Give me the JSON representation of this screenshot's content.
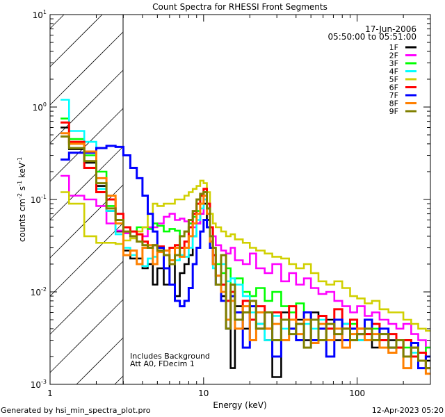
{
  "chart_data": {
    "type": "line",
    "step": true,
    "title": "Count Spectra for RHESSI Front Segments",
    "xlabel": "Energy (keV)",
    "ylabel": {
      "parts": [
        "counts cm",
        "-2",
        " s",
        "-1",
        " keV",
        "-1"
      ]
    },
    "xscale": "log",
    "yscale": "log",
    "xlim": [
      1,
      300
    ],
    "ylim": [
      0.001,
      10
    ],
    "x_ticks": [
      {
        "value": 1,
        "label": "1"
      },
      {
        "value": 10,
        "label": "10"
      },
      {
        "value": 100,
        "label": "100"
      }
    ],
    "y_ticks": [
      {
        "value": 10,
        "base": "10",
        "exp": "1"
      },
      {
        "value": 1,
        "base": "10",
        "exp": "0"
      },
      {
        "value": 0.1,
        "base": "10",
        "exp": "-1"
      },
      {
        "value": 0.01,
        "base": "10",
        "exp": "-2"
      },
      {
        "value": 0.001,
        "base": "10",
        "exp": "-3"
      }
    ],
    "hatched_region_keV": [
      1,
      3
    ],
    "date": "17-Jun-2006",
    "time_range": "05:50:00 to 05:51:00",
    "annotations": [
      "Includes Background",
      "Att A0, FDecim 1"
    ],
    "legend_position": "top-right",
    "energy_edges": [
      1.17,
      1.33,
      1.67,
      2,
      2.33,
      2.67,
      3,
      3.33,
      3.67,
      4,
      4.33,
      4.67,
      5,
      5.5,
      6,
      6.5,
      7,
      7.5,
      8,
      8.5,
      9,
      9.5,
      10,
      10.5,
      11,
      11.5,
      12,
      13,
      14,
      15,
      16,
      18,
      20,
      22,
      25,
      28,
      32,
      36,
      40,
      45,
      50,
      56,
      63,
      71,
      80,
      90,
      100,
      112,
      125,
      140,
      160,
      180,
      200,
      225,
      250,
      280,
      300
    ],
    "series": [
      {
        "name": "1F",
        "color": "#000000",
        "values": [
          0.6,
          0.35,
          0.25,
          0.14,
          0.075,
          0.045,
          0.028,
          0.023,
          0.023,
          0.018,
          0.02,
          0.012,
          0.018,
          0.012,
          0.02,
          0.009,
          0.016,
          0.02,
          0.025,
          0.04,
          0.055,
          0.07,
          0.09,
          0.06,
          0.035,
          0.02,
          0.012,
          0.009,
          0.005,
          0.0015,
          0.007,
          0.004,
          0.008,
          0.0045,
          0.003,
          0.0012,
          0.006,
          0.004,
          0.005,
          0.003,
          0.006,
          0.004,
          0.005,
          0.003,
          0.0045,
          0.004,
          0.003,
          0.004,
          0.0025,
          0.0035,
          0.003,
          0.0025,
          0.003,
          0.002,
          0.0022,
          0.0018
        ]
      },
      {
        "name": "2F",
        "color": "#ff00ff",
        "values": [
          0.18,
          0.11,
          0.1,
          0.085,
          0.055,
          0.046,
          0.043,
          0.04,
          0.042,
          0.04,
          0.05,
          0.05,
          0.055,
          0.065,
          0.07,
          0.06,
          0.062,
          0.058,
          0.055,
          0.05,
          0.055,
          0.07,
          0.1,
          0.08,
          0.05,
          0.04,
          0.032,
          0.028,
          0.026,
          0.03,
          0.022,
          0.02,
          0.026,
          0.018,
          0.016,
          0.02,
          0.013,
          0.016,
          0.012,
          0.014,
          0.011,
          0.0095,
          0.01,
          0.008,
          0.007,
          0.006,
          0.007,
          0.0055,
          0.006,
          0.005,
          0.0045,
          0.004,
          0.0045,
          0.0035,
          0.003,
          0.0025
        ]
      },
      {
        "name": "3F",
        "color": "#00ff00",
        "values": [
          0.75,
          0.45,
          0.3,
          0.2,
          0.085,
          0.06,
          0.05,
          0.045,
          0.05,
          0.05,
          0.048,
          0.055,
          0.052,
          0.045,
          0.048,
          0.046,
          0.04,
          0.045,
          0.055,
          0.065,
          0.075,
          0.09,
          0.12,
          0.08,
          0.05,
          0.03,
          0.02,
          0.016,
          0.018,
          0.012,
          0.014,
          0.01,
          0.009,
          0.011,
          0.008,
          0.01,
          0.007,
          0.006,
          0.0075,
          0.006,
          0.005,
          0.0055,
          0.004,
          0.005,
          0.004,
          0.0045,
          0.004,
          0.0035,
          0.004,
          0.003,
          0.0035,
          0.003,
          0.0025,
          0.0028,
          0.0022,
          0.0025
        ]
      },
      {
        "name": "4F",
        "color": "#00ffff",
        "values": [
          1.2,
          0.55,
          0.42,
          0.13,
          0.075,
          0.042,
          0.03,
          0.025,
          0.02,
          0.019,
          0.023,
          0.024,
          0.028,
          0.025,
          0.02,
          0.022,
          0.025,
          0.024,
          0.03,
          0.04,
          0.06,
          0.08,
          0.1,
          0.07,
          0.04,
          0.018,
          0.015,
          0.02,
          0.013,
          0.014,
          0.012,
          0.009,
          0.006,
          0.0045,
          0.003,
          0.0055,
          0.004,
          0.005,
          0.0035,
          0.0045,
          0.004,
          0.005,
          0.003,
          0.004,
          0.0045,
          0.0035,
          0.003,
          0.004,
          0.0045,
          0.003,
          0.0025,
          0.003,
          0.002,
          0.0022,
          0.0018,
          0.002
        ]
      },
      {
        "name": "5F",
        "color": "#d0d000",
        "values": [
          0.12,
          0.09,
          0.04,
          0.034,
          0.034,
          0.033,
          0.036,
          0.038,
          0.045,
          0.05,
          0.07,
          0.09,
          0.085,
          0.09,
          0.09,
          0.1,
          0.1,
          0.11,
          0.12,
          0.13,
          0.14,
          0.16,
          0.15,
          0.12,
          0.07,
          0.055,
          0.05,
          0.045,
          0.04,
          0.042,
          0.037,
          0.034,
          0.03,
          0.028,
          0.026,
          0.024,
          0.023,
          0.02,
          0.018,
          0.02,
          0.016,
          0.013,
          0.012,
          0.013,
          0.011,
          0.009,
          0.0085,
          0.0075,
          0.008,
          0.0065,
          0.006,
          0.006,
          0.005,
          0.0045,
          0.004,
          0.0038
        ]
      },
      {
        "name": "6F",
        "color": "#ff0000",
        "values": [
          0.68,
          0.42,
          0.22,
          0.12,
          0.1,
          0.07,
          0.05,
          0.045,
          0.042,
          0.035,
          0.03,
          0.032,
          0.031,
          0.028,
          0.03,
          0.032,
          0.03,
          0.035,
          0.05,
          0.07,
          0.09,
          0.11,
          0.13,
          0.09,
          0.05,
          0.025,
          0.015,
          0.012,
          0.008,
          0.01,
          0.006,
          0.008,
          0.005,
          0.007,
          0.004,
          0.006,
          0.005,
          0.007,
          0.0045,
          0.006,
          0.005,
          0.0055,
          0.004,
          0.0065,
          0.004,
          0.005,
          0.004,
          0.0035,
          0.0045,
          0.003,
          0.0035,
          0.0025,
          0.003,
          0.002,
          0.0022,
          0.0015
        ]
      },
      {
        "name": "7F",
        "color": "#0000ff",
        "values": [
          0.27,
          0.32,
          0.32,
          0.36,
          0.38,
          0.37,
          0.3,
          0.22,
          0.17,
          0.11,
          0.07,
          0.045,
          0.03,
          0.018,
          0.012,
          0.008,
          0.007,
          0.008,
          0.011,
          0.02,
          0.03,
          0.045,
          0.06,
          0.05,
          0.03,
          0.02,
          0.012,
          0.008,
          0.004,
          0.009,
          0.006,
          0.0025,
          0.007,
          0.004,
          0.006,
          0.002,
          0.005,
          0.004,
          0.003,
          0.006,
          0.003,
          0.004,
          0.002,
          0.005,
          0.003,
          0.004,
          0.0035,
          0.005,
          0.003,
          0.004,
          0.0025,
          0.003,
          0.002,
          0.0028,
          0.0015,
          0.002
        ]
      },
      {
        "name": "8F",
        "color": "#ff8000",
        "values": [
          0.52,
          0.4,
          0.33,
          0.17,
          0.11,
          0.055,
          0.025,
          0.028,
          0.02,
          0.03,
          0.032,
          0.02,
          0.027,
          0.028,
          0.022,
          0.03,
          0.024,
          0.03,
          0.04,
          0.055,
          0.07,
          0.09,
          0.11,
          0.07,
          0.035,
          0.02,
          0.015,
          0.01,
          0.005,
          0.008,
          0.004,
          0.007,
          0.003,
          0.006,
          0.004,
          0.0045,
          0.003,
          0.005,
          0.0035,
          0.005,
          0.0028,
          0.0045,
          0.003,
          0.004,
          0.0025,
          0.0035,
          0.004,
          0.003,
          0.0035,
          0.0025,
          0.0022,
          0.003,
          0.0015,
          0.0025,
          0.0018,
          0.0013
        ]
      },
      {
        "name": "9F",
        "color": "#808000",
        "values": [
          0.48,
          0.36,
          0.26,
          0.15,
          0.08,
          0.06,
          0.045,
          0.04,
          0.035,
          0.032,
          0.03,
          0.032,
          0.028,
          0.025,
          0.02,
          0.025,
          0.04,
          0.045,
          0.06,
          0.075,
          0.1,
          0.115,
          0.12,
          0.08,
          0.04,
          0.03,
          0.012,
          0.025,
          0.004,
          0.012,
          0.005,
          0.006,
          0.008,
          0.004,
          0.006,
          0.003,
          0.005,
          0.0035,
          0.0045,
          0.0025,
          0.005,
          0.003,
          0.0045,
          0.0035,
          0.004,
          0.003,
          0.0035,
          0.004,
          0.003,
          0.0035,
          0.0025,
          0.003,
          0.002,
          0.0025,
          0.0018,
          0.0015
        ]
      }
    ]
  },
  "footer": {
    "generator": "Generated by hsi_min_spectra_plot.pro",
    "timestamp": "12-Apr-2023 05:20"
  }
}
